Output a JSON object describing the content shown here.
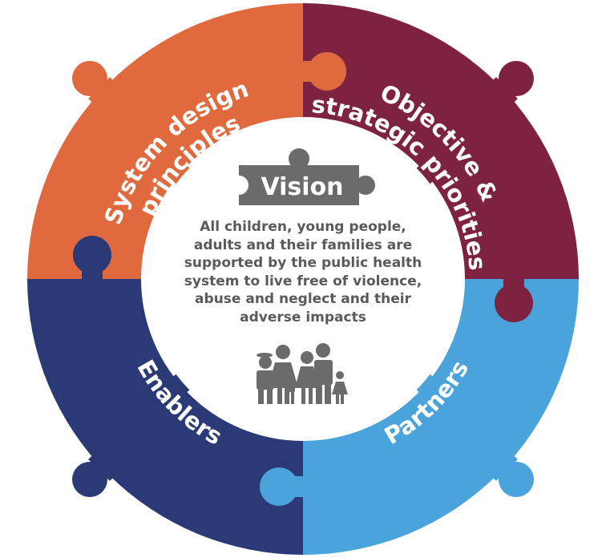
{
  "colors": {
    "system_design": "#E06A3E",
    "objective": "#7D2241",
    "partners": "#4BA3DB",
    "enablers": "#2B3A76",
    "vision_piece": "#6B6B6B",
    "family_icon": "#6B6B6B",
    "center": "#ffffff"
  },
  "segments": {
    "system_design": {
      "line1": "System design",
      "line2": "principles"
    },
    "objective": {
      "line1": "Objective &",
      "line2": "strategic priorities"
    },
    "partners": {
      "line1": "Partners"
    },
    "enablers": {
      "line1": "Enablers"
    }
  },
  "vision": {
    "title": "Vision",
    "lines": [
      "All children, young people,",
      "adults and their families are",
      "supported by the public health",
      "system to live free of violence,",
      "abuse and neglect and their",
      "adverse impacts"
    ]
  },
  "icons": {
    "center_icon": "family-icon",
    "vision_icon": "puzzle-piece-icon"
  }
}
